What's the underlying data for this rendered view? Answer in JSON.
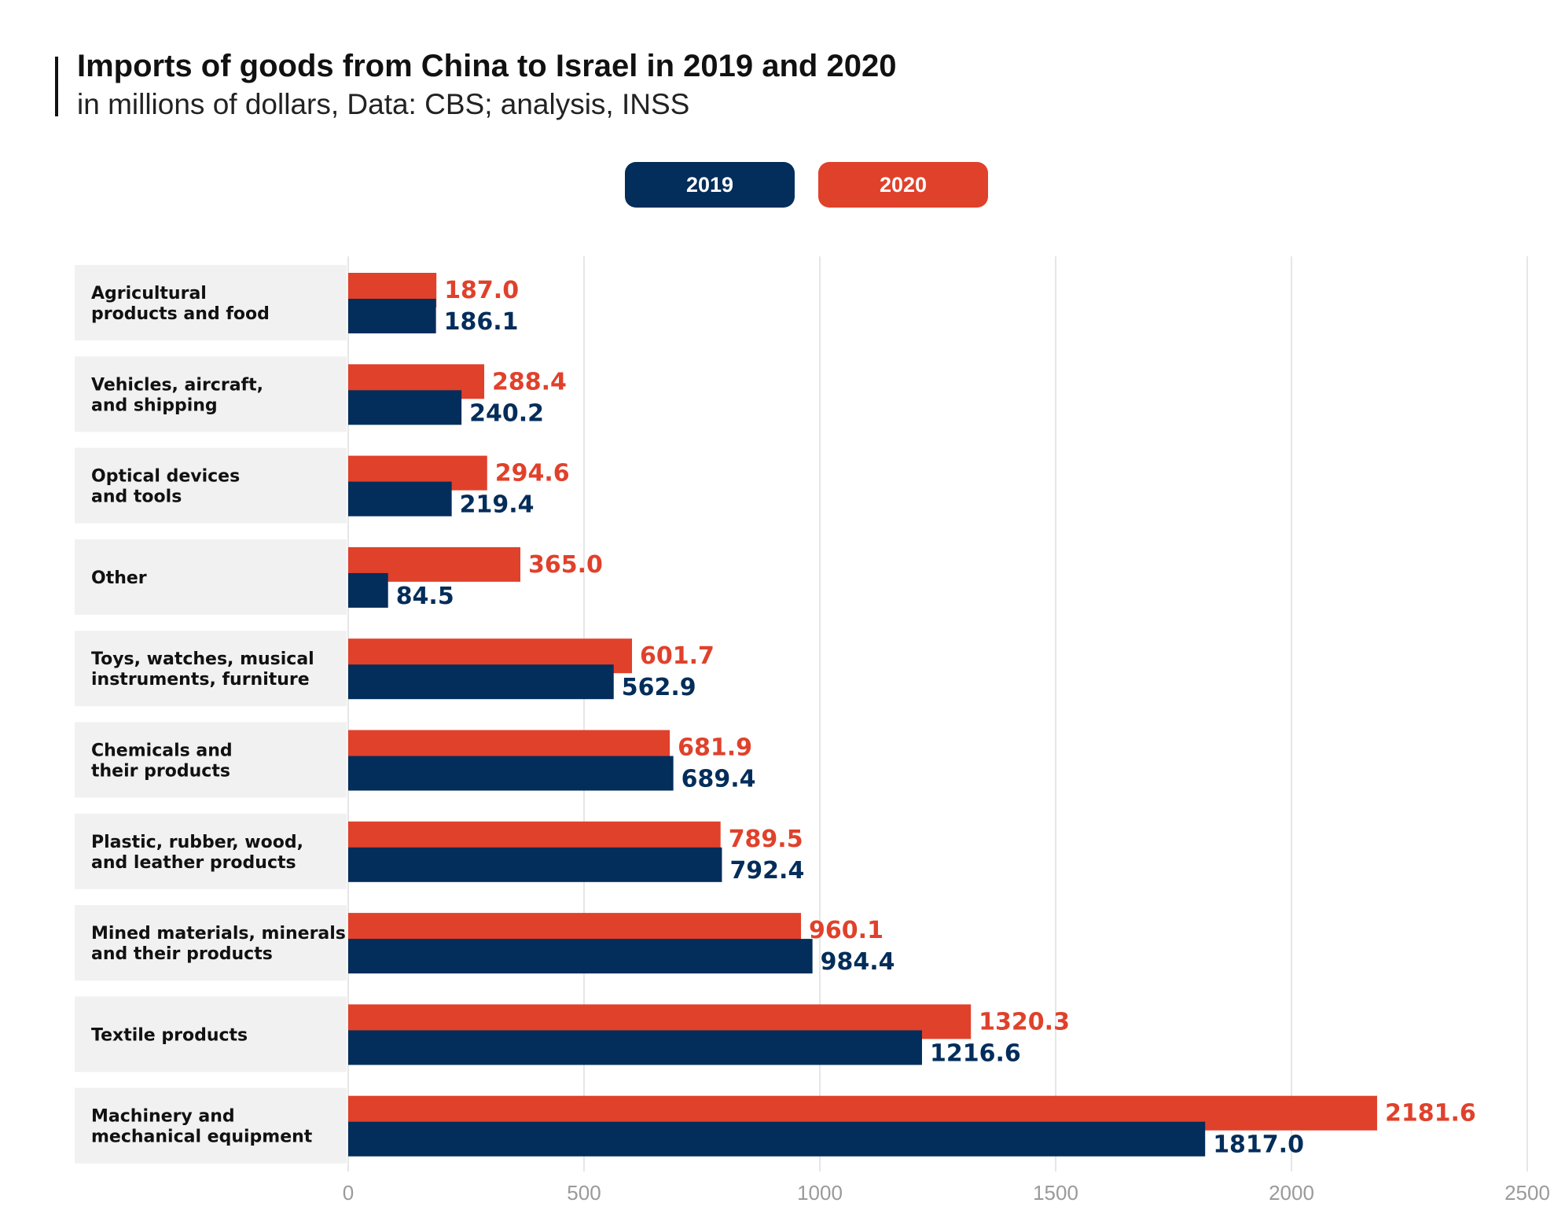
{
  "title": "Imports of goods from China to Israel in 2019 and 2020",
  "subtitle": "in millions of dollars, Data: CBS; analysis, INSS",
  "colors": {
    "2019": "#032d5a",
    "2020": "#e0412b",
    "grid": "#dddddd",
    "label_bg": "#f1f1f1"
  },
  "chart_data": {
    "type": "bar",
    "orientation": "horizontal",
    "title": "Imports of goods from China to Israel in 2019 and 2020",
    "subtitle": "in millions of dollars, Data: CBS; analysis, INSS",
    "legend": [
      "2019",
      "2020"
    ],
    "legend_position": "top",
    "grid": true,
    "xlim": [
      0,
      2500
    ],
    "ticks": [
      "0",
      "500",
      "1000",
      "1500",
      "2000",
      "2500"
    ],
    "categories": [
      [
        "Agricultural",
        "products and food"
      ],
      [
        "Vehicles, aircraft,",
        "and shipping"
      ],
      [
        "Optical devices",
        "and tools"
      ],
      [
        "Other"
      ],
      [
        "Toys, watches, musical",
        "instruments, furniture"
      ],
      [
        "Chemicals and",
        "their products"
      ],
      [
        "Plastic, rubber, wood,",
        "and leather products"
      ],
      [
        "Mined materials, minerals",
        "and their products"
      ],
      [
        "Textile products"
      ],
      [
        "Machinery and",
        "mechanical equipment"
      ]
    ],
    "series": [
      {
        "name": "2020",
        "values": [
          187.0,
          288.4,
          294.6,
          365.0,
          601.7,
          681.9,
          789.5,
          960.1,
          1320.3,
          2181.6
        ],
        "labels": [
          "187.0",
          "288.4",
          "294.6",
          "365.0",
          "601.7",
          "681.9",
          "789.5",
          "960.1",
          "1320.3",
          "2181.6"
        ]
      },
      {
        "name": "2019",
        "values": [
          186.1,
          240.2,
          219.4,
          84.5,
          562.9,
          689.4,
          792.4,
          984.4,
          1216.6,
          1817.0
        ],
        "labels": [
          "186.1",
          "240.2",
          "219.4",
          "84.5",
          "562.9",
          "689.4",
          "792.4",
          "984.4",
          "1216.6",
          "1817.0"
        ]
      }
    ]
  }
}
